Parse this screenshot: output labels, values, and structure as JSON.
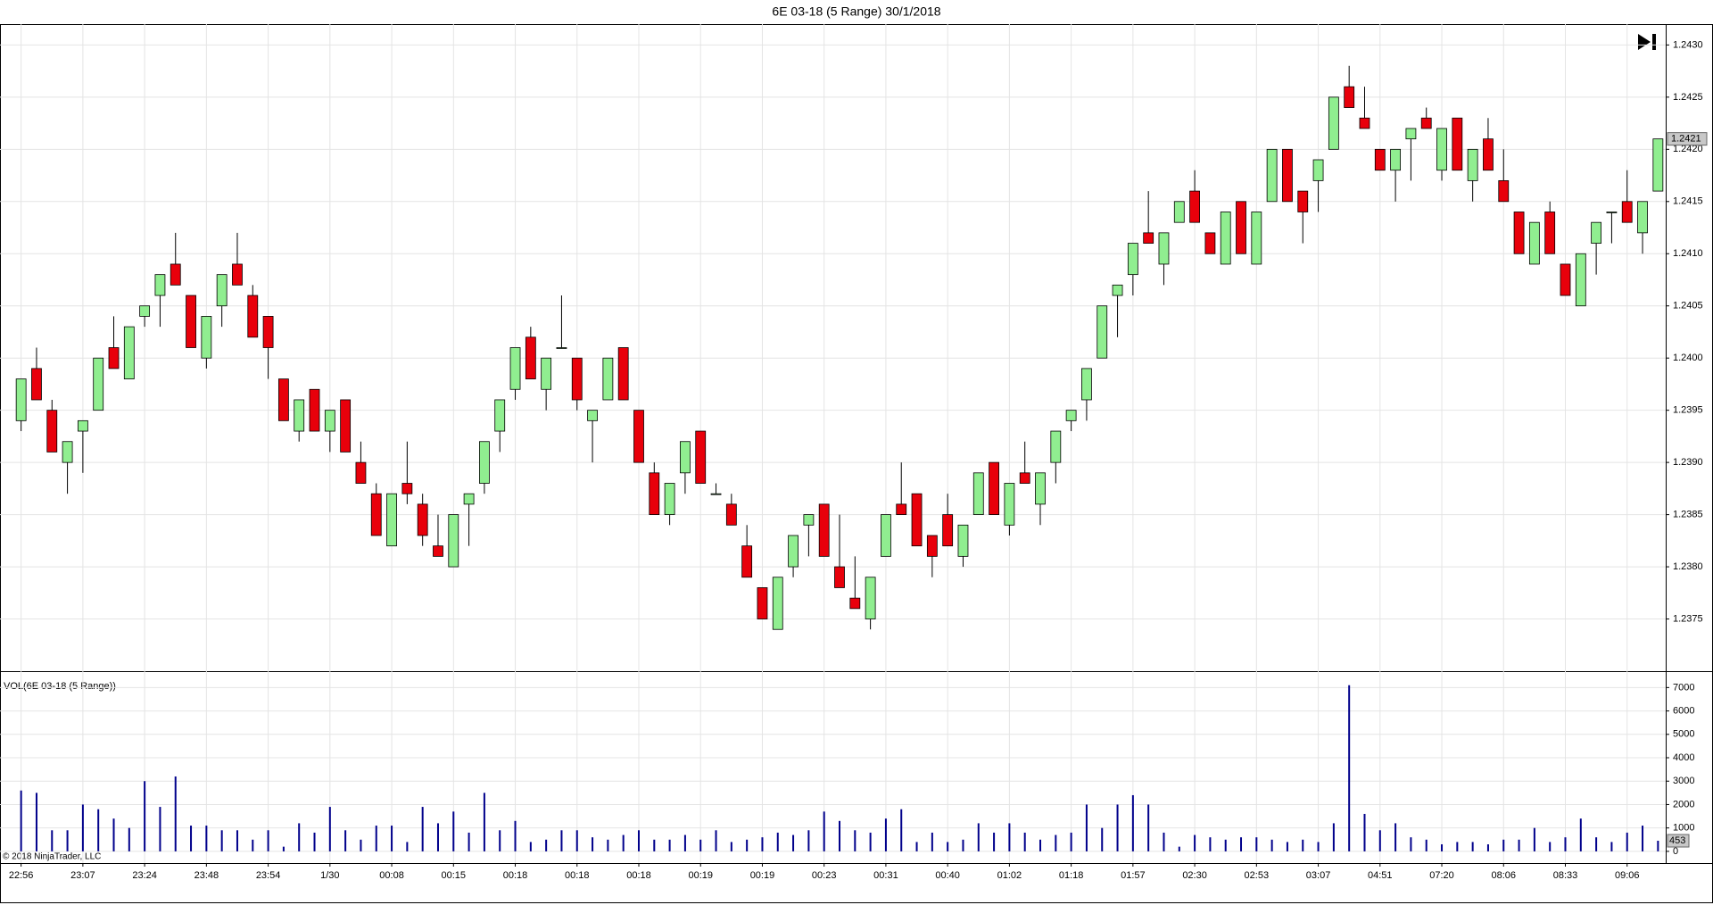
{
  "chart_data": [
    {
      "type": "candlestick",
      "title": "6E 03-18 (5 Range)  30/1/2018",
      "categories": [
        "22:56",
        null,
        null,
        null,
        "23:07",
        null,
        null,
        null,
        "23:24",
        null,
        null,
        null,
        "23:48",
        null,
        null,
        null,
        "23:54",
        null,
        null,
        null,
        "1/30",
        null,
        null,
        null,
        "00:08",
        null,
        null,
        null,
        "00:15",
        null,
        null,
        null,
        "00:18",
        null,
        null,
        null,
        "00:18",
        null,
        null,
        null,
        "00:18",
        null,
        null,
        null,
        "00:19",
        null,
        null,
        null,
        "00:19",
        null,
        null,
        null,
        "00:23",
        null,
        null,
        null,
        "00:31",
        null,
        null,
        null,
        "00:40",
        null,
        null,
        null,
        "01:02",
        null,
        null,
        null,
        "01:18",
        null,
        null,
        null,
        "01:57",
        null,
        null,
        null,
        "02:30",
        null,
        null,
        null,
        "02:53",
        null,
        null,
        null,
        "03:07",
        null,
        null,
        null,
        "04:51",
        null,
        null,
        null,
        "07:20",
        null,
        null,
        null,
        "08:06",
        null,
        null,
        null,
        "08:33",
        null,
        null,
        null,
        "09:06",
        null,
        null
      ],
      "open": [
        1.2394,
        1.2399,
        1.2395,
        1.239,
        1.2393,
        1.2395,
        1.2401,
        1.2398,
        1.2404,
        1.2406,
        1.2409,
        1.2406,
        1.24,
        1.2405,
        1.2409,
        1.2406,
        1.2404,
        1.2398,
        1.2393,
        1.2397,
        1.2393,
        1.2396,
        1.239,
        1.2387,
        1.2382,
        1.2388,
        1.2386,
        1.2382,
        1.238,
        1.2386,
        1.2388,
        1.2393,
        1.2397,
        1.2402,
        1.2397,
        1.2401,
        1.24,
        1.2394,
        1.2396,
        1.2401,
        1.2395,
        1.2389,
        1.2385,
        1.2389,
        1.2393,
        1.2387,
        1.2386,
        1.2382,
        1.2378,
        1.2374,
        1.238,
        1.2384,
        1.2386,
        1.238,
        1.2377,
        1.2375,
        1.2381,
        1.2386,
        1.2387,
        1.2383,
        1.2385,
        1.2381,
        1.2385,
        1.239,
        1.2384,
        1.2389,
        1.2386,
        1.239,
        1.2394,
        1.2396,
        1.24,
        1.2406,
        1.2408,
        1.2412,
        1.2409,
        1.2413,
        1.2416,
        1.2412,
        1.2409,
        1.2415,
        1.2409,
        1.2415,
        1.242,
        1.2416,
        1.2417,
        1.242,
        1.2426,
        1.2423,
        1.242,
        1.2418,
        1.2421,
        1.2423,
        1.2418,
        1.2423,
        1.2417,
        1.2421,
        1.2417,
        1.2414,
        1.2409,
        1.2414,
        1.2409,
        1.2405,
        1.2411,
        1.2414,
        1.2415,
        1.2412,
        1.2416
      ],
      "high": [
        1.2398,
        1.2401,
        1.2396,
        1.2392,
        1.2394,
        1.24,
        1.2404,
        1.2403,
        1.2405,
        1.2408,
        1.2412,
        1.2406,
        1.2404,
        1.2408,
        1.2412,
        1.2407,
        1.2404,
        1.2398,
        1.2396,
        1.2397,
        1.2395,
        1.2396,
        1.2392,
        1.2388,
        1.2387,
        1.2392,
        1.2387,
        1.2385,
        1.2385,
        1.2387,
        1.2392,
        1.2396,
        1.2401,
        1.2403,
        1.24,
        1.2406,
        1.24,
        1.2395,
        1.24,
        1.2401,
        1.2395,
        1.239,
        1.2388,
        1.2392,
        1.2393,
        1.2388,
        1.2387,
        1.2384,
        1.2378,
        1.2379,
        1.2383,
        1.2385,
        1.2386,
        1.2385,
        1.2381,
        1.2379,
        1.2385,
        1.239,
        1.2387,
        1.2383,
        1.2387,
        1.2384,
        1.2389,
        1.239,
        1.2388,
        1.2392,
        1.2389,
        1.2393,
        1.2395,
        1.2399,
        1.2405,
        1.2407,
        1.2411,
        1.2416,
        1.2412,
        1.2415,
        1.2418,
        1.2412,
        1.2414,
        1.2415,
        1.2414,
        1.242,
        1.242,
        1.2416,
        1.2419,
        1.2425,
        1.2428,
        1.2426,
        1.242,
        1.242,
        1.2422,
        1.2424,
        1.2422,
        1.2423,
        1.242,
        1.2423,
        1.242,
        1.2414,
        1.2413,
        1.2415,
        1.2409,
        1.241,
        1.2413,
        1.2414,
        1.2418,
        1.2415,
        1.2421
      ],
      "low": [
        1.2393,
        1.2396,
        1.2391,
        1.2387,
        1.2389,
        1.2395,
        1.2399,
        1.2398,
        1.2403,
        1.2403,
        1.2407,
        1.2401,
        1.2399,
        1.2403,
        1.2407,
        1.2402,
        1.2398,
        1.2394,
        1.2392,
        1.2393,
        1.2391,
        1.2391,
        1.2388,
        1.2383,
        1.2382,
        1.2386,
        1.2382,
        1.2381,
        1.238,
        1.2382,
        1.2387,
        1.2391,
        1.2396,
        1.2398,
        1.2395,
        1.2401,
        1.2395,
        1.239,
        1.2396,
        1.2396,
        1.239,
        1.2385,
        1.2384,
        1.2387,
        1.2388,
        1.2387,
        1.2384,
        1.2379,
        1.2375,
        1.2374,
        1.2379,
        1.2381,
        1.2381,
        1.2378,
        1.2376,
        1.2374,
        1.2381,
        1.2385,
        1.2382,
        1.2379,
        1.2382,
        1.238,
        1.2385,
        1.2385,
        1.2383,
        1.2388,
        1.2384,
        1.2388,
        1.2393,
        1.2394,
        1.24,
        1.2402,
        1.2406,
        1.2411,
        1.2407,
        1.2413,
        1.2413,
        1.241,
        1.2409,
        1.241,
        1.2409,
        1.2415,
        1.2415,
        1.2411,
        1.2414,
        1.242,
        1.2424,
        1.2422,
        1.2418,
        1.2415,
        1.2417,
        1.2422,
        1.2417,
        1.2418,
        1.2415,
        1.2418,
        1.2415,
        1.241,
        1.2409,
        1.241,
        1.2406,
        1.2405,
        1.2408,
        1.2411,
        1.2413,
        1.241,
        1.2416
      ],
      "close": [
        1.2398,
        1.2396,
        1.2391,
        1.2392,
        1.2394,
        1.24,
        1.2399,
        1.2403,
        1.2405,
        1.2408,
        1.2407,
        1.2401,
        1.2404,
        1.2408,
        1.2407,
        1.2402,
        1.2401,
        1.2394,
        1.2396,
        1.2393,
        1.2395,
        1.2391,
        1.2388,
        1.2383,
        1.2387,
        1.2387,
        1.2383,
        1.2381,
        1.2385,
        1.2387,
        1.2392,
        1.2396,
        1.2401,
        1.2398,
        1.24,
        1.2401,
        1.2396,
        1.2395,
        1.24,
        1.2396,
        1.239,
        1.2385,
        1.2388,
        1.2392,
        1.2388,
        1.2387,
        1.2384,
        1.2379,
        1.2375,
        1.2379,
        1.2383,
        1.2385,
        1.2381,
        1.2378,
        1.2376,
        1.2379,
        1.2385,
        1.2385,
        1.2382,
        1.2381,
        1.2382,
        1.2384,
        1.2389,
        1.2385,
        1.2388,
        1.2388,
        1.2389,
        1.2393,
        1.2395,
        1.2399,
        1.2405,
        1.2407,
        1.2411,
        1.2411,
        1.2412,
        1.2415,
        1.2413,
        1.241,
        1.2414,
        1.241,
        1.2414,
        1.242,
        1.2415,
        1.2414,
        1.2419,
        1.2425,
        1.2424,
        1.2422,
        1.2418,
        1.242,
        1.2422,
        1.2422,
        1.2422,
        1.2418,
        1.242,
        1.2418,
        1.2415,
        1.241,
        1.2413,
        1.241,
        1.2406,
        1.241,
        1.2413,
        1.2414,
        1.2413,
        1.2415,
        1.2421
      ],
      "up_color": "#90ee90",
      "down_color": "#e8000b",
      "ylim": [
        1.237,
        1.2432
      ],
      "yticks": [
        1.2375,
        {
          "value": 1.238,
          "label": "1.2380"
        },
        1.2385,
        {
          "value": 1.239,
          "label": "1.2390"
        },
        1.2395,
        {
          "value": 1.24,
          "label": "1.2400"
        },
        1.2405,
        {
          "value": 1.241,
          "label": "1.2410"
        },
        1.2415,
        {
          "value": 1.242,
          "label": "1.2420"
        },
        1.2425,
        {
          "value": 1.243,
          "label": "1.2430"
        }
      ],
      "grid": true
    },
    {
      "type": "bar",
      "title": "VOL(6E 03-18 (5 Range))",
      "annotation": "© 2018 NinjaTrader, LLC",
      "values": [
        2600,
        2500,
        900,
        900,
        2000,
        1800,
        1400,
        1000,
        3000,
        1900,
        3200,
        1100,
        1100,
        900,
        900,
        500,
        900,
        200,
        1200,
        800,
        1900,
        900,
        500,
        1100,
        1100,
        400,
        1900,
        1200,
        1700,
        800,
        2500,
        900,
        1300,
        400,
        500,
        900,
        900,
        600,
        500,
        700,
        900,
        500,
        500,
        700,
        500,
        900,
        400,
        500,
        600,
        800,
        700,
        900,
        1700,
        1300,
        900,
        800,
        1400,
        1800,
        400,
        800,
        400,
        500,
        1200,
        800,
        1200,
        800,
        500,
        700,
        800,
        2000,
        1000,
        2000,
        2400,
        2000,
        800,
        200,
        700,
        600,
        500,
        600,
        600,
        500,
        400,
        500,
        400,
        1200,
        7100,
        1600,
        900,
        1200,
        600,
        500,
        300,
        400,
        400,
        300,
        500,
        500,
        1000,
        400,
        600,
        1400,
        600,
        400,
        800,
        1100,
        453
      ],
      "color": "#00008b",
      "ylim": [
        -500,
        7700
      ],
      "yticks": [
        0,
        1000,
        2000,
        3000,
        4000,
        5000,
        6000,
        7000
      ],
      "grid": true
    }
  ]
}
